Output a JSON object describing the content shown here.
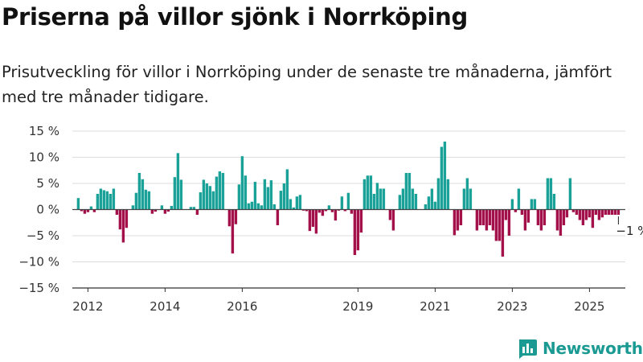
{
  "header": {
    "title": "Priserna på villor sjönk i Norrköping",
    "subtitle": "Prisutveckling för villor i Norrköping under de senaste tre månaderna, jämfört med tre månader tidigare."
  },
  "branding": {
    "name": "Newsworthy",
    "logo_icon": "bar-chart-badge-icon"
  },
  "colors": {
    "positive": "#1aa198",
    "negative": "#a3104a",
    "grid": "#dddddd",
    "axis": "#333333"
  },
  "chart_data": {
    "type": "bar",
    "x": [
      "2011-10",
      "2011-11",
      "2011-12",
      "2012-01",
      "2012-02",
      "2012-03",
      "2012-04",
      "2012-05",
      "2012-06",
      "2012-07",
      "2012-08",
      "2012-09",
      "2012-10",
      "2012-11",
      "2012-12",
      "2013-01",
      "2013-02",
      "2013-03",
      "2013-04",
      "2013-05",
      "2013-06",
      "2013-07",
      "2013-08",
      "2013-09",
      "2013-10",
      "2013-11",
      "2013-12",
      "2014-01",
      "2014-02",
      "2014-03",
      "2014-04",
      "2014-05",
      "2014-06",
      "2014-07",
      "2014-08",
      "2014-09",
      "2014-10",
      "2014-11",
      "2014-12",
      "2015-01",
      "2015-02",
      "2015-03",
      "2015-04",
      "2015-05",
      "2015-06",
      "2015-07",
      "2015-08",
      "2015-09",
      "2015-10",
      "2015-11",
      "2015-12",
      "2016-01",
      "2016-02",
      "2016-03",
      "2016-04",
      "2016-05",
      "2016-06",
      "2016-07",
      "2016-08",
      "2016-09",
      "2016-10",
      "2016-11",
      "2016-12",
      "2017-01",
      "2017-02",
      "2017-03",
      "2017-04",
      "2017-05",
      "2017-06",
      "2017-07",
      "2017-08",
      "2017-09",
      "2017-10",
      "2017-11",
      "2017-12",
      "2018-01",
      "2018-02",
      "2018-03",
      "2018-04",
      "2018-05",
      "2018-06",
      "2018-07",
      "2018-08",
      "2018-09",
      "2018-10",
      "2018-11",
      "2018-12",
      "2019-01",
      "2019-02",
      "2019-03",
      "2019-04",
      "2019-05",
      "2019-06",
      "2019-07",
      "2019-08",
      "2019-09",
      "2019-10",
      "2019-11",
      "2019-12",
      "2020-01",
      "2020-02",
      "2020-03",
      "2020-04",
      "2020-05",
      "2020-06",
      "2020-07",
      "2020-08",
      "2020-09",
      "2020-10",
      "2020-11",
      "2020-12",
      "2021-01",
      "2021-02",
      "2021-03",
      "2021-04",
      "2021-05",
      "2021-06",
      "2021-07",
      "2021-08",
      "2021-09",
      "2021-10",
      "2021-11",
      "2021-12",
      "2022-01",
      "2022-02",
      "2022-03",
      "2022-04",
      "2022-05",
      "2022-06",
      "2022-07",
      "2022-08",
      "2022-09",
      "2022-10",
      "2022-11",
      "2022-12",
      "2023-01",
      "2023-02",
      "2023-03",
      "2023-04",
      "2023-05",
      "2023-06",
      "2023-07",
      "2023-08",
      "2023-09",
      "2023-10",
      "2023-11",
      "2023-12",
      "2024-01",
      "2024-02",
      "2024-03",
      "2024-04",
      "2024-05",
      "2024-06",
      "2024-07",
      "2024-08",
      "2024-09",
      "2024-10",
      "2024-11",
      "2024-12",
      "2025-01",
      "2025-02",
      "2025-03",
      "2025-04",
      "2025-05",
      "2025-06",
      "2025-07",
      "2025-08",
      "2025-09",
      "2025-10"
    ],
    "series": [
      {
        "values": [
          2.2,
          -0.3,
          -0.8,
          -0.5,
          0.6,
          -0.5,
          3.0,
          4.0,
          3.7,
          3.5,
          3.0,
          4.0,
          -1.0,
          -3.8,
          -6.3,
          -3.5,
          0.0,
          0.8,
          3.2,
          7.0,
          5.8,
          3.8,
          3.5,
          -0.8,
          -0.4,
          0.0,
          0.8,
          -0.8,
          -0.4,
          0.7,
          6.2,
          10.8,
          5.7,
          0.0,
          0.0,
          0.5,
          0.5,
          -1.0,
          3.3,
          5.7,
          5.0,
          4.5,
          3.5,
          6.3,
          7.3,
          7.0,
          0.0,
          -3.2,
          -8.4,
          -2.8,
          4.8,
          10.2,
          6.5,
          1.2,
          1.5,
          5.3,
          1.2,
          0.8,
          5.8,
          4.3,
          5.6,
          1.0,
          -3.0,
          3.6,
          5.0,
          7.7,
          2.0,
          0.4,
          2.5,
          2.8,
          -0.2,
          -0.3,
          -4.1,
          -3.3,
          -4.6,
          -0.6,
          -1.2,
          -0.3,
          0.8,
          -0.5,
          -2.1,
          -0.2,
          2.5,
          -0.3,
          3.2,
          -0.8,
          -8.7,
          -7.8,
          -4.4,
          5.8,
          6.5,
          6.5,
          3.0,
          5.1,
          4.0,
          4.0,
          0.0,
          -2.0,
          -4.0,
          0.0,
          2.8,
          4.0,
          7.0,
          7.0,
          4.0,
          3.0,
          0.0,
          0.0,
          1.0,
          2.5,
          4.0,
          1.5,
          6.0,
          12.0,
          13.0,
          5.8,
          0.0,
          -4.9,
          -4.0,
          -3.0,
          4.0,
          6.0,
          4.0,
          0.0,
          -4.0,
          -3.0,
          -3.0,
          -4.0,
          -3.0,
          -4.0,
          -6.0,
          -6.0,
          -9.0,
          -2.0,
          -5.0,
          2.0,
          -0.5,
          4.0,
          -1.0,
          -4.0,
          -2.5,
          2.0,
          2.0,
          -3.0,
          -4.0,
          -3.0,
          6.0,
          6.0,
          3.0,
          -4.0,
          -5.0,
          -3.0,
          -1.5,
          6.0,
          -0.5,
          -1.0,
          -2.0,
          -3.0,
          -2.0,
          -1.5,
          -3.5,
          -1.0,
          -2.0,
          -1.5,
          -1.0,
          -1.0,
          -1.0,
          -1.0,
          -1.0
        ]
      }
    ],
    "x_tick_labels": [
      "2012",
      "2014",
      "2016",
      "2019",
      "2021",
      "2023",
      "2025"
    ],
    "y_tick_labels": [
      "15 %",
      "10 %",
      "5 %",
      "0 %",
      "−5 %",
      "−10 %",
      "−15 %"
    ],
    "ylim": [
      -15,
      15
    ],
    "y_ticks": [
      15,
      10,
      5,
      0,
      -5,
      -10,
      -15
    ],
    "grid": true,
    "annotation": {
      "text": "−1 %",
      "target": "2025-10"
    }
  }
}
